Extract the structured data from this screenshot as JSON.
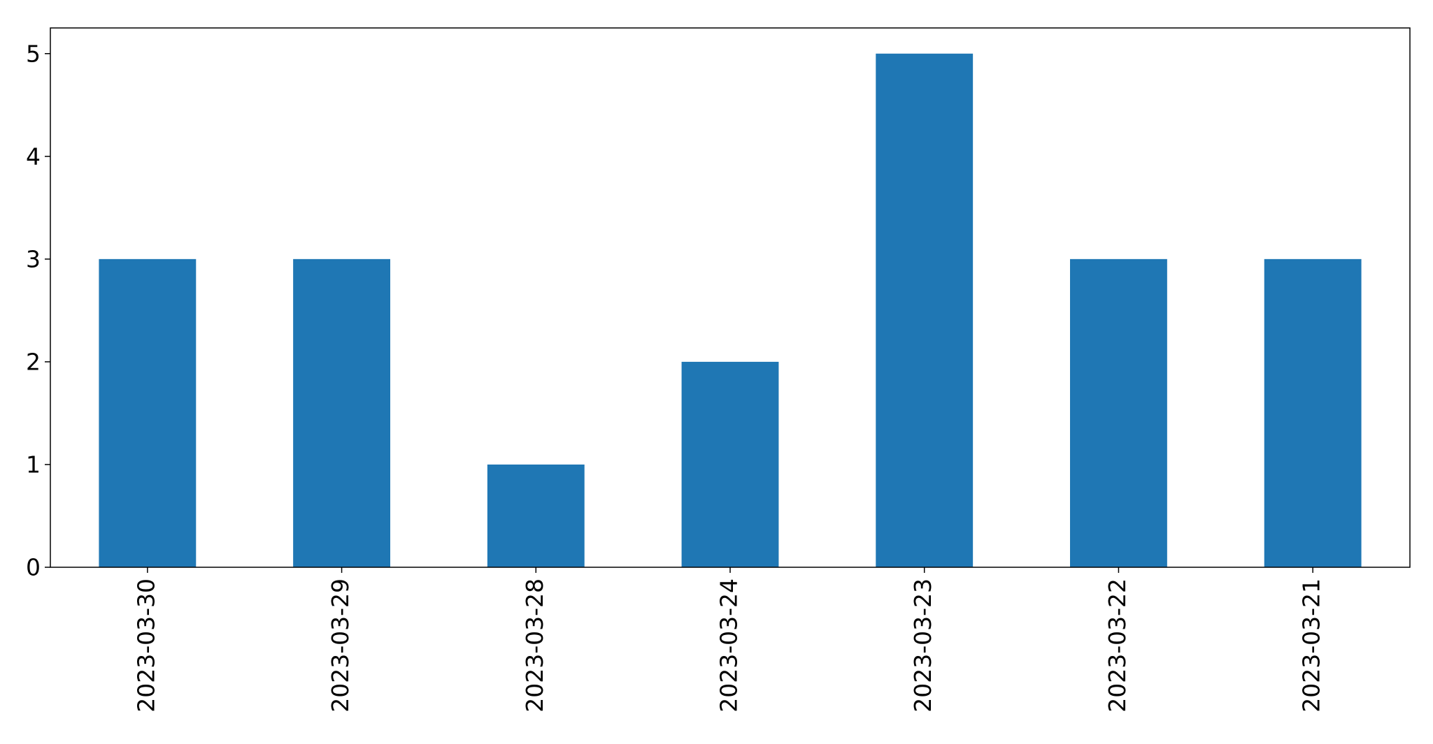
{
  "chart_data": {
    "type": "bar",
    "title": "",
    "xlabel": "",
    "ylabel": "",
    "categories": [
      "2023-03-30",
      "2023-03-29",
      "2023-03-28",
      "2023-03-24",
      "2023-03-23",
      "2023-03-22",
      "2023-03-21"
    ],
    "values": [
      3,
      3,
      1,
      2,
      5,
      3,
      3
    ],
    "ylim": [
      0,
      5.25
    ],
    "yticks": [
      "0",
      "1",
      "2",
      "3",
      "4",
      "5"
    ],
    "grid": false,
    "legend": "none",
    "colors": {
      "bar": "#1f77b4",
      "axis": "#000000",
      "background": "#ffffff"
    }
  }
}
